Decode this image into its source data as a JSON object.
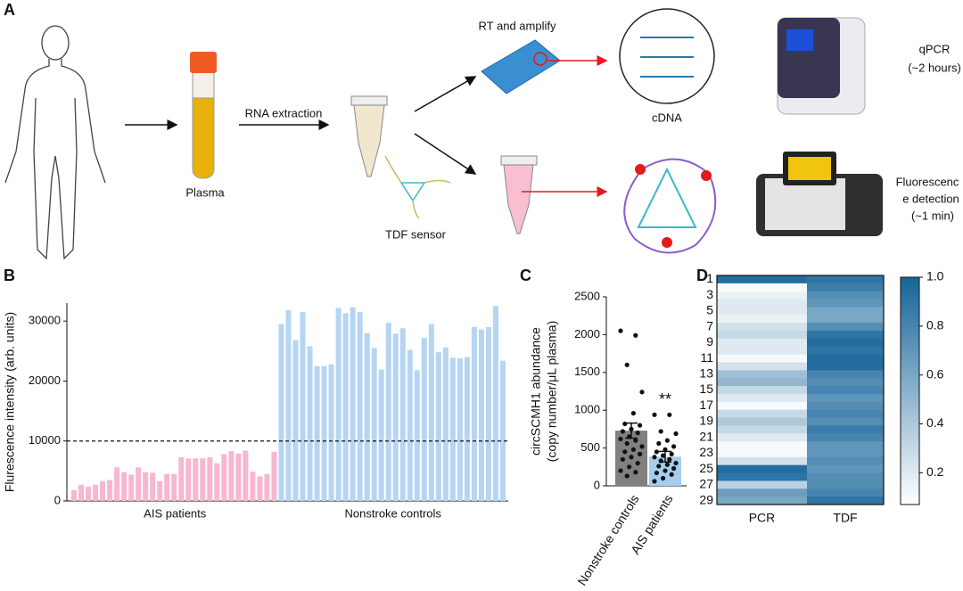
{
  "panel_labels": [
    "A",
    "B",
    "C",
    "D"
  ],
  "diagram": {
    "plasma": "Plasma",
    "rna_extraction": "RNA extraction",
    "rt_amplify": "RT and amplify",
    "cdna": "cDNA",
    "qpcr": [
      "qPCR",
      "(~2 hours)"
    ],
    "tdf_sensor": "TDF sensor",
    "fluorescence": [
      "Fluorescenc",
      "e detection",
      "(~1 min)"
    ]
  },
  "chart_data": [
    {
      "type": "bar",
      "ylabel": "Flurescence intensity (arb. units)",
      "ylim": [
        0,
        33000
      ],
      "yticks": [
        0,
        10000,
        20000,
        30000
      ],
      "threshold": 10000,
      "series": [
        {
          "name": "AIS patients",
          "color": "#f7b6d2",
          "values": [
            1800,
            2700,
            2400,
            2700,
            3300,
            3500,
            5600,
            4800,
            4400,
            5600,
            4800,
            4700,
            3300,
            4500,
            4500,
            7300,
            7100,
            7100,
            7100,
            7300,
            6300,
            7800,
            8300,
            7900,
            8400,
            4900,
            4100,
            4500,
            8200
          ]
        },
        {
          "name": "Nonstroke controls",
          "color": "#b5d5f2",
          "values": [
            29500,
            31800,
            26800,
            31500,
            25800,
            22500,
            22500,
            22800,
            32200,
            31300,
            32300,
            31500,
            28000,
            25500,
            21900,
            29700,
            27900,
            28800,
            25200,
            21800,
            27200,
            29500,
            24800,
            25600,
            23900,
            23800,
            24000,
            29000,
            28600,
            29000,
            32500,
            23400
          ]
        }
      ]
    },
    {
      "type": "bar_scatter",
      "ylabel": [
        "circSCMH1 abundance",
        "(copy number/μL plasma)"
      ],
      "ylim": [
        0,
        2500
      ],
      "yticks": [
        0,
        500,
        1000,
        1500,
        2000,
        2500
      ],
      "categories": [
        "Nonstroke controls",
        "AIS patients"
      ],
      "colors": [
        "#808080",
        "#a6cdee"
      ],
      "values": [
        730,
        385
      ],
      "errors": [
        100,
        70
      ],
      "points": [
        [
          2050,
          1990,
          1600,
          1240,
          960,
          820,
          800,
          750,
          720,
          700,
          650,
          620,
          600,
          560,
          520,
          480,
          450,
          420,
          380,
          350,
          300,
          250,
          200,
          180,
          130
        ],
        [
          940,
          940,
          720,
          690,
          600,
          560,
          520,
          480,
          450,
          420,
          400,
          380,
          350,
          330,
          300,
          280,
          260,
          230,
          200,
          170,
          150,
          100,
          60
        ]
      ],
      "annotation": {
        "text": "**",
        "category": "AIS patients"
      }
    },
    {
      "type": "heatmap",
      "categories": [
        "1",
        null,
        "3",
        null,
        "5",
        null,
        "7",
        null,
        "9",
        null,
        "11",
        null,
        "13",
        null,
        "15",
        null,
        "17",
        null,
        "19",
        null,
        "21",
        null,
        "23",
        null,
        "25",
        null,
        "27",
        null,
        "29"
      ],
      "series": [
        {
          "name": "PCR",
          "values": [
            0.95,
            0.1,
            0.15,
            0.2,
            0.2,
            0.15,
            0.25,
            0.3,
            0.2,
            0.2,
            0.1,
            0.25,
            0.45,
            0.5,
            0.3,
            0.2,
            0.1,
            0.3,
            0.4,
            0.3,
            0.2,
            0.1,
            0.1,
            0.25,
            0.95,
            0.9,
            0.35,
            0.65,
            0.6
          ]
        },
        {
          "name": "TDF",
          "values": [
            0.9,
            0.85,
            0.75,
            0.7,
            0.6,
            0.6,
            0.75,
            0.9,
            0.95,
            0.9,
            0.95,
            0.95,
            0.8,
            0.75,
            0.8,
            0.7,
            0.75,
            0.8,
            0.75,
            0.85,
            0.8,
            0.7,
            0.7,
            0.75,
            0.7,
            0.75,
            0.75,
            0.8,
            0.9
          ]
        }
      ],
      "zlim": [
        0.07,
        1.0
      ],
      "zticks": [
        0.2,
        0.4,
        0.6,
        0.8,
        {
          "value": 1,
          "label": "1.0"
        }
      ],
      "colormap": [
        "#ffffff",
        "#15649a"
      ]
    }
  ]
}
